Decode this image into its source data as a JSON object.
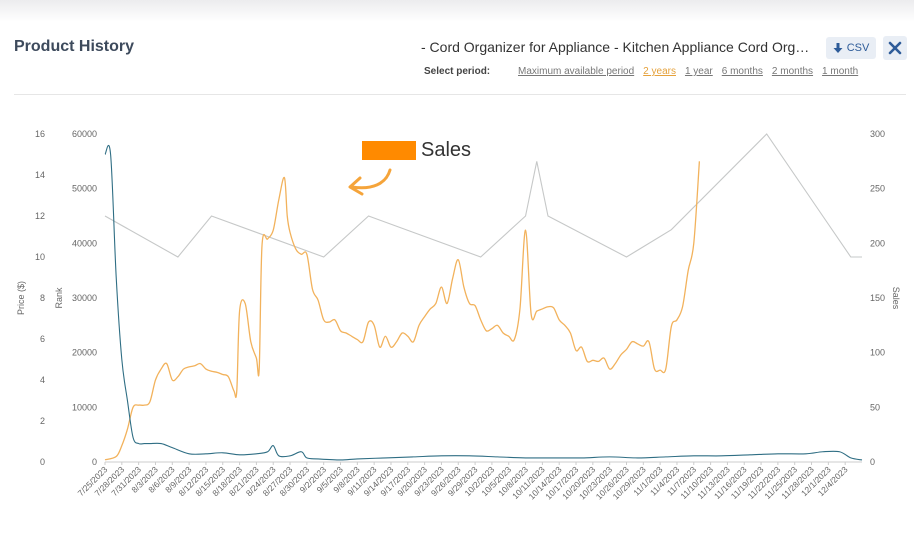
{
  "header": {
    "title": "Product History",
    "product": "- Cord Organizer for Appliance - Kitchen Appliance Cord Organi…",
    "csv_label": "CSV",
    "select_period_label": "Select period:",
    "periods": [
      "Maximum available period",
      "2 years",
      "1 year",
      "6 months",
      "2 months",
      "1 month"
    ],
    "active_period": "2 years"
  },
  "annotation": {
    "label": "Sales",
    "swatch_color": "#ff8a00"
  },
  "colors": {
    "price": "#2f6e84",
    "rank": "#c6c8c8",
    "sales": "#f2b25c",
    "active": "#e5a13b"
  },
  "chart_data": {
    "type": "line",
    "x_labels": [
      "7/25/2023",
      "7/28/2023",
      "7/31/2023",
      "8/3/2023",
      "8/6/2023",
      "8/9/2023",
      "8/12/2023",
      "8/15/2023",
      "8/18/2023",
      "8/21/2023",
      "8/24/2023",
      "8/27/2023",
      "8/30/2023",
      "9/2/2023",
      "9/5/2023",
      "9/8/2023",
      "9/11/2023",
      "9/14/2023",
      "9/17/2023",
      "9/20/2023",
      "9/23/2023",
      "9/26/2023",
      "9/29/2023",
      "10/2/2023",
      "10/5/2023",
      "10/8/2023",
      "10/11/2023",
      "10/14/2023",
      "10/17/2023",
      "10/20/2023",
      "10/23/2023",
      "10/26/2023",
      "10/29/2023",
      "11/1/2023",
      "11/4/2023",
      "11/7/2023",
      "11/10/2023",
      "11/13/2023",
      "11/16/2023",
      "11/19/2023",
      "11/22/2023",
      "11/25/2023",
      "11/28/2023",
      "12/1/2023",
      "12/4/2023"
    ],
    "x_range": [
      0,
      135
    ],
    "axes": {
      "price": {
        "label": "Price ($)",
        "min": 0,
        "max": 16,
        "ticks": [
          0,
          2,
          4,
          6,
          8,
          10,
          12,
          14,
          16
        ]
      },
      "rank": {
        "label": "Rank",
        "min": 0,
        "max": 60000,
        "ticks": [
          0,
          10000,
          20000,
          30000,
          40000,
          50000,
          60000
        ]
      },
      "sales": {
        "label": "Sales",
        "min": 0,
        "max": 300,
        "ticks": [
          0,
          50,
          100,
          150,
          200,
          250,
          300
        ]
      }
    },
    "series": [
      {
        "name": "Price",
        "axis": "price",
        "points": [
          [
            0,
            15
          ],
          [
            1,
            15
          ],
          [
            2,
            9
          ],
          [
            3,
            5
          ],
          [
            4,
            3
          ],
          [
            5,
            1.2
          ],
          [
            6,
            0.9
          ],
          [
            7,
            0.9
          ],
          [
            8,
            0.9
          ],
          [
            10,
            0.9
          ],
          [
            12,
            0.7
          ],
          [
            15,
            0.4
          ],
          [
            18,
            0.4
          ],
          [
            21,
            0.45
          ],
          [
            24,
            0.35
          ],
          [
            27,
            0.4
          ],
          [
            29,
            0.5
          ],
          [
            30,
            0.8
          ],
          [
            31,
            0.3
          ],
          [
            33,
            0.3
          ],
          [
            35,
            0.5
          ],
          [
            36,
            0.2
          ],
          [
            38,
            0.15
          ],
          [
            42,
            0.1
          ],
          [
            45,
            0.15
          ],
          [
            50,
            0.2
          ],
          [
            55,
            0.25
          ],
          [
            60,
            0.3
          ],
          [
            65,
            0.3
          ],
          [
            70,
            0.25
          ],
          [
            75,
            0.2
          ],
          [
            80,
            0.2
          ],
          [
            85,
            0.2
          ],
          [
            90,
            0.25
          ],
          [
            95,
            0.2
          ],
          [
            100,
            0.25
          ],
          [
            105,
            0.3
          ],
          [
            110,
            0.3
          ],
          [
            115,
            0.35
          ],
          [
            120,
            0.4
          ],
          [
            125,
            0.4
          ],
          [
            128,
            0.5
          ],
          [
            131,
            0.5
          ],
          [
            133,
            0.2
          ],
          [
            135,
            0.1
          ]
        ]
      },
      {
        "name": "Rank",
        "axis": "rank",
        "points": [
          [
            0,
            45000
          ],
          [
            13,
            37500
          ],
          [
            19,
            45000
          ],
          [
            39,
            37500
          ],
          [
            47,
            45000
          ],
          [
            67,
            37500
          ],
          [
            75,
            45000
          ],
          [
            77,
            55000
          ],
          [
            79,
            45000
          ],
          [
            93,
            37500
          ],
          [
            101,
            42500
          ],
          [
            118,
            60000
          ],
          [
            128,
            45000
          ],
          [
            133,
            37500
          ],
          [
            135,
            37500
          ]
        ]
      },
      {
        "name": "Sales",
        "axis": "sales",
        "points": [
          [
            0,
            2
          ],
          [
            2,
            5
          ],
          [
            3,
            15
          ],
          [
            4,
            30
          ],
          [
            5,
            50
          ],
          [
            6,
            52
          ],
          [
            7,
            52
          ],
          [
            8,
            55
          ],
          [
            9,
            75
          ],
          [
            10,
            85
          ],
          [
            11,
            90
          ],
          [
            12,
            75
          ],
          [
            13,
            78
          ],
          [
            14,
            85
          ],
          [
            15,
            87
          ],
          [
            16,
            88
          ],
          [
            17,
            90
          ],
          [
            18,
            85
          ],
          [
            19,
            83
          ],
          [
            20,
            82
          ],
          [
            21,
            80
          ],
          [
            22,
            78
          ],
          [
            23,
            65
          ],
          [
            23.5,
            65
          ],
          [
            24,
            138
          ],
          [
            25,
            145
          ],
          [
            26,
            110
          ],
          [
            27,
            95
          ],
          [
            27.5,
            85
          ],
          [
            28,
            198
          ],
          [
            29,
            204
          ],
          [
            30,
            212
          ],
          [
            31,
            240
          ],
          [
            32,
            260
          ],
          [
            32.5,
            225
          ],
          [
            33,
            210
          ],
          [
            34,
            195
          ],
          [
            35,
            190
          ],
          [
            36,
            190
          ],
          [
            37,
            158
          ],
          [
            38,
            148
          ],
          [
            39,
            130
          ],
          [
            40,
            128
          ],
          [
            41,
            130
          ],
          [
            42,
            120
          ],
          [
            43,
            118
          ],
          [
            44,
            115
          ],
          [
            45,
            112
          ],
          [
            46,
            110
          ],
          [
            47,
            128
          ],
          [
            48,
            125
          ],
          [
            49,
            105
          ],
          [
            50,
            115
          ],
          [
            51,
            105
          ],
          [
            52,
            110
          ],
          [
            53,
            118
          ],
          [
            54,
            115
          ],
          [
            55,
            110
          ],
          [
            56,
            125
          ],
          [
            57,
            133
          ],
          [
            58,
            140
          ],
          [
            59,
            145
          ],
          [
            60,
            160
          ],
          [
            61,
            145
          ],
          [
            62,
            168
          ],
          [
            63,
            185
          ],
          [
            64,
            160
          ],
          [
            65,
            145
          ],
          [
            66,
            143
          ],
          [
            67,
            130
          ],
          [
            68,
            120
          ],
          [
            69,
            122
          ],
          [
            70,
            125
          ],
          [
            71,
            118
          ],
          [
            72,
            115
          ],
          [
            73,
            112
          ],
          [
            74,
            140
          ],
          [
            75,
            212
          ],
          [
            76,
            135
          ],
          [
            77,
            138
          ],
          [
            78,
            140
          ],
          [
            79,
            142
          ],
          [
            80,
            141
          ],
          [
            81,
            130
          ],
          [
            82,
            125
          ],
          [
            83,
            118
          ],
          [
            84,
            102
          ],
          [
            85,
            105
          ],
          [
            86,
            92
          ],
          [
            87,
            93
          ],
          [
            88,
            92
          ],
          [
            89,
            95
          ],
          [
            90,
            85
          ],
          [
            91,
            90
          ],
          [
            92,
            98
          ],
          [
            93,
            103
          ],
          [
            94,
            110
          ],
          [
            95,
            108
          ],
          [
            96,
            106
          ],
          [
            97,
            110
          ],
          [
            98,
            85
          ],
          [
            99,
            84
          ],
          [
            100,
            85
          ],
          [
            101,
            124
          ],
          [
            102,
            130
          ],
          [
            103,
            142
          ],
          [
            104,
            175
          ],
          [
            105,
            200
          ],
          [
            106,
            275
          ]
        ]
      }
    ],
    "legend": "none",
    "grid": false
  }
}
